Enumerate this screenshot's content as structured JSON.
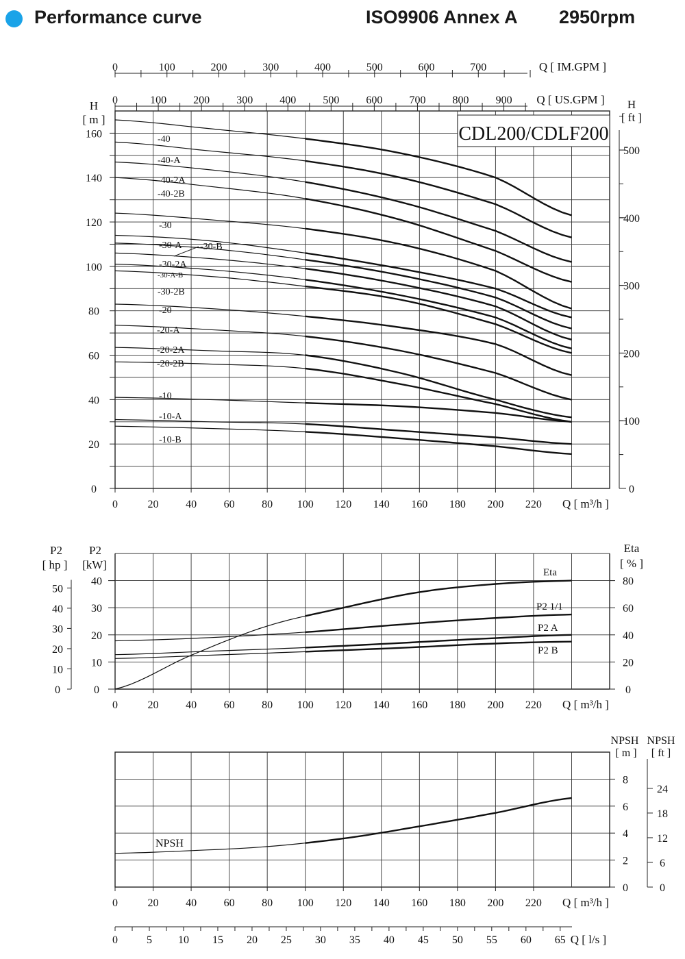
{
  "header": {
    "title": "Performance curve",
    "standard": "ISO9906 Annex A",
    "speed": "2950rpm",
    "dot_color": "#1aa3e8"
  },
  "chart_data": [
    {
      "type": "line",
      "model": "CDL200/CDLF200",
      "xlabel": "Q [ m³/h ]",
      "ylabel_left": [
        "H",
        "[ m ]"
      ],
      "ylabel_right": [
        "H",
        "[ ft ]"
      ],
      "xlim": [
        0,
        260
      ],
      "ylim": [
        0,
        170
      ],
      "x_ticks": [
        0,
        20,
        40,
        60,
        80,
        100,
        120,
        140,
        160,
        180,
        200,
        220
      ],
      "y_ticks": [
        0,
        20,
        40,
        60,
        80,
        100,
        120,
        140,
        160
      ],
      "ft_ticks": [
        0,
        100,
        200,
        300,
        400,
        500
      ],
      "top_axes": [
        {
          "label": "Q [ US.GPM ]",
          "ticks": [
            0,
            100,
            200,
            300,
            400,
            500,
            600,
            700,
            800,
            900
          ]
        },
        {
          "label": "Q [ IM.GPM ]",
          "ticks": [
            0,
            100,
            200,
            300,
            400,
            500,
            600,
            700
          ]
        }
      ],
      "series": [
        {
          "name": "-40",
          "values": [
            [
              0,
              166
            ],
            [
              50,
              162
            ],
            [
              100,
              157.5
            ],
            [
              150,
              151
            ],
            [
              200,
              140
            ],
            [
              240,
              123
            ]
          ]
        },
        {
          "name": "-40-A",
          "values": [
            [
              0,
              156
            ],
            [
              50,
              152
            ],
            [
              100,
              147.5
            ],
            [
              150,
              140
            ],
            [
              200,
              128
            ],
            [
              240,
              113
            ]
          ]
        },
        {
          "name": "-40-2A",
          "values": [
            [
              0,
              147
            ],
            [
              50,
              143.5
            ],
            [
              100,
              138
            ],
            [
              150,
              129
            ],
            [
              200,
              116
            ],
            [
              240,
              102
            ]
          ]
        },
        {
          "name": "-40-2B",
          "values": [
            [
              0,
              140
            ],
            [
              50,
              136
            ],
            [
              100,
              130.5
            ],
            [
              150,
              121
            ],
            [
              200,
              107
            ],
            [
              240,
              93
            ]
          ]
        },
        {
          "name": "-30",
          "values": [
            [
              0,
              124
            ],
            [
              50,
              121
            ],
            [
              100,
              117
            ],
            [
              150,
              110
            ],
            [
              200,
              98
            ],
            [
              240,
              81
            ]
          ]
        },
        {
          "name": "-30-A",
          "values": [
            [
              0,
              114
            ],
            [
              50,
              111.5
            ],
            [
              100,
              106
            ],
            [
              150,
              99
            ],
            [
              200,
              90
            ],
            [
              240,
              77
            ]
          ]
        },
        {
          "name": "-30-B",
          "values": [
            [
              0,
              110.5
            ],
            [
              50,
              108
            ],
            [
              100,
              103
            ],
            [
              150,
              96
            ],
            [
              200,
              86
            ],
            [
              240,
              72
            ]
          ]
        },
        {
          "name": "-30-2A",
          "values": [
            [
              0,
              106
            ],
            [
              50,
              103.5
            ],
            [
              100,
              99
            ],
            [
              150,
              92
            ],
            [
              200,
              82
            ],
            [
              240,
              67
            ]
          ]
        },
        {
          "name": "-30-A-B",
          "values": [
            [
              0,
              101
            ],
            [
              50,
              98.5
            ],
            [
              100,
              94
            ],
            [
              150,
              87
            ],
            [
              200,
              77
            ],
            [
              240,
              63
            ]
          ]
        },
        {
          "name": "-30-2B",
          "values": [
            [
              0,
              98
            ],
            [
              50,
              95.5
            ],
            [
              100,
              91
            ],
            [
              150,
              85
            ],
            [
              200,
              74
            ],
            [
              240,
              61
            ]
          ]
        },
        {
          "name": "-20",
          "values": [
            [
              0,
              83
            ],
            [
              50,
              81
            ],
            [
              100,
              77.5
            ],
            [
              150,
              72.5
            ],
            [
              200,
              65
            ],
            [
              240,
              51
            ]
          ]
        },
        {
          "name": "-20-A",
          "values": [
            [
              0,
              73.5
            ],
            [
              50,
              71.5
            ],
            [
              100,
              68.5
            ],
            [
              150,
              62
            ],
            [
              200,
              52
            ],
            [
              240,
              40
            ]
          ]
        },
        {
          "name": "-20-2A",
          "values": [
            [
              0,
              63.5
            ],
            [
              50,
              62
            ],
            [
              100,
              60
            ],
            [
              150,
              52
            ],
            [
              200,
              40
            ],
            [
              240,
              32
            ]
          ]
        },
        {
          "name": "-20-2B",
          "values": [
            [
              0,
              57
            ],
            [
              50,
              56
            ],
            [
              100,
              54
            ],
            [
              150,
              47
            ],
            [
              200,
              38
            ],
            [
              240,
              30
            ]
          ]
        },
        {
          "name": "-10",
          "values": [
            [
              0,
              41
            ],
            [
              50,
              40
            ],
            [
              100,
              38.5
            ],
            [
              150,
              37
            ],
            [
              200,
              34
            ],
            [
              240,
              30
            ]
          ]
        },
        {
          "name": "-10-A",
          "values": [
            [
              0,
              31
            ],
            [
              50,
              30
            ],
            [
              100,
              29
            ],
            [
              150,
              26
            ],
            [
              200,
              23
            ],
            [
              240,
              20
            ]
          ]
        },
        {
          "name": "-10-B",
          "values": [
            [
              0,
              28
            ],
            [
              50,
              27
            ],
            [
              100,
              25.5
            ],
            [
              150,
              22.5
            ],
            [
              200,
              19
            ],
            [
              240,
              15.5
            ]
          ]
        }
      ]
    },
    {
      "type": "line",
      "xlabel": "Q [ m³/h ]",
      "ylabel_kw": [
        "P2",
        "[kW]"
      ],
      "ylabel_hp": [
        "P2",
        "[ hp ]"
      ],
      "ylabel_right": [
        "Eta",
        "[ % ]"
      ],
      "xlim": [
        0,
        260
      ],
      "x_ticks": [
        0,
        20,
        40,
        60,
        80,
        100,
        120,
        140,
        160,
        180,
        200,
        220
      ],
      "kw_ticks": [
        0,
        10,
        20,
        30,
        40
      ],
      "hp_ticks": [
        0,
        10,
        20,
        30,
        40,
        50
      ],
      "eta_ticks": [
        0,
        20,
        40,
        60,
        80
      ],
      "series": [
        {
          "name": "Eta",
          "unit": "%",
          "values": [
            [
              0,
              0
            ],
            [
              40,
              25
            ],
            [
              80,
              46.5
            ],
            [
              120,
              60
            ],
            [
              160,
              71.5
            ],
            [
              200,
              77.5
            ],
            [
              240,
              80
            ]
          ]
        },
        {
          "name": "P2  1/1",
          "unit": "kW",
          "values": [
            [
              0,
              17.8
            ],
            [
              50,
              19
            ],
            [
              100,
              21
            ],
            [
              150,
              23.8
            ],
            [
              200,
              26.2
            ],
            [
              240,
              27.5
            ]
          ]
        },
        {
          "name": "P2  A",
          "unit": "kW",
          "values": [
            [
              0,
              12.7
            ],
            [
              50,
              14
            ],
            [
              100,
              15.3
            ],
            [
              150,
              17
            ],
            [
              200,
              18.8
            ],
            [
              240,
              20
            ]
          ]
        },
        {
          "name": "P2  B",
          "unit": "kW",
          "values": [
            [
              0,
              11.3
            ],
            [
              50,
              12.5
            ],
            [
              100,
              13.8
            ],
            [
              150,
              15.2
            ],
            [
              200,
              16.8
            ],
            [
              240,
              17.5
            ]
          ]
        }
      ]
    },
    {
      "type": "line",
      "xlabel": "Q [ m³/h ]",
      "ylabel_m": [
        "NPSH",
        "[ m ]"
      ],
      "ylabel_ft": [
        "NPSH",
        "[ ft ]"
      ],
      "xlim": [
        0,
        260
      ],
      "x_ticks": [
        0,
        20,
        40,
        60,
        80,
        100,
        120,
        140,
        160,
        180,
        200,
        220
      ],
      "m_ticks": [
        0,
        2,
        4,
        6,
        8
      ],
      "ft_ticks": [
        0,
        6,
        12,
        18,
        24
      ],
      "ls_axis": {
        "label": "Q [ l/s ]",
        "ticks": [
          0,
          5,
          10,
          15,
          20,
          25,
          30,
          35,
          40,
          45,
          50,
          55,
          60,
          65
        ]
      },
      "series": [
        {
          "name": "NPSH",
          "values": [
            [
              0,
              2.5
            ],
            [
              40,
              2.7
            ],
            [
              80,
              3.0
            ],
            [
              120,
              3.6
            ],
            [
              160,
              4.5
            ],
            [
              200,
              5.5
            ],
            [
              240,
              6.6
            ]
          ]
        }
      ]
    }
  ]
}
